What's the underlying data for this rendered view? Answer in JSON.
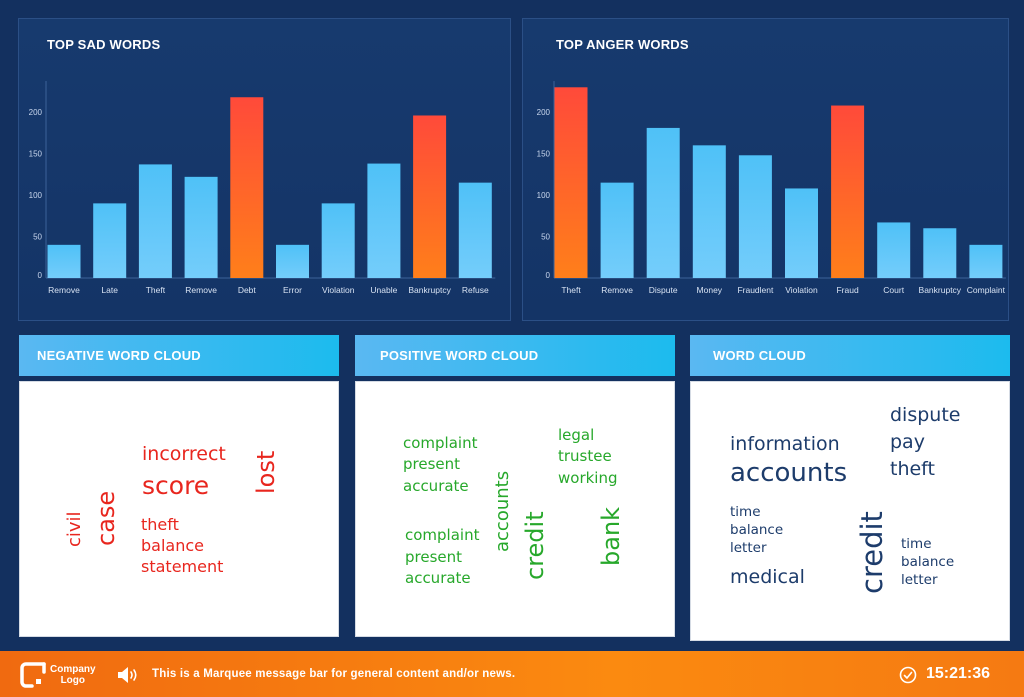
{
  "charts": {
    "sad": {
      "title": "TOP SAD WORDS"
    },
    "anger": {
      "title": "TOP ANGER WORDS"
    }
  },
  "chart_data": [
    {
      "type": "bar",
      "title": "TOP SAD WORDS",
      "categories": [
        "Remove",
        "Late",
        "Theft",
        "Remove",
        "Debt",
        "Error",
        "Violation",
        "Unable",
        "Bankruptcy",
        "Refuse"
      ],
      "values": [
        40,
        90,
        137,
        122,
        218,
        40,
        90,
        138,
        196,
        115
      ],
      "highlight": [
        false,
        false,
        false,
        false,
        true,
        false,
        false,
        false,
        true,
        false
      ],
      "yticks": [
        0,
        50,
        100,
        150,
        200
      ],
      "ylim": [
        0,
        240
      ],
      "grid": false,
      "colors": {
        "normal": "#5ac8fa",
        "highlight": "#ff5a1f"
      }
    },
    {
      "type": "bar",
      "title": "TOP ANGER WORDS",
      "categories": [
        "Theft",
        "Remove",
        "Dispute",
        "Money",
        "Fraudlent",
        "Violation",
        "Fraud",
        "Court",
        "Bankruptcy",
        "Complaint"
      ],
      "values": [
        230,
        115,
        181,
        160,
        148,
        108,
        208,
        67,
        60,
        40
      ],
      "highlight": [
        true,
        false,
        false,
        false,
        false,
        false,
        true,
        false,
        false,
        false
      ],
      "yticks": [
        0,
        50,
        100,
        150,
        200
      ],
      "ylim": [
        0,
        240
      ],
      "grid": false,
      "colors": {
        "normal": "#5ac8fa",
        "highlight": "#ff5a1f"
      }
    }
  ],
  "clouds": {
    "negative": {
      "title": "NEGATIVE WORD CLOUD",
      "words": [
        "incorrect",
        "score",
        "lost",
        "civil",
        "case",
        "theft",
        "balance",
        "statement"
      ]
    },
    "positive": {
      "title": "POSITIVE WORD CLOUD",
      "words": [
        "complaint",
        "present",
        "accurate",
        "legal",
        "trustee",
        "working",
        "accounts",
        "credit",
        "bank",
        "complaint",
        "present",
        "accurate"
      ]
    },
    "neutral": {
      "title": "WORD CLOUD",
      "words": [
        "information",
        "accounts",
        "dispute",
        "pay",
        "theft",
        "time",
        "balance",
        "letter",
        "medical",
        "credit",
        "time",
        "balance",
        "letter"
      ]
    }
  },
  "footer": {
    "logo_line1": "Company",
    "logo_line2": "Logo",
    "marquee": "This is a Marquee message bar for general content and/or news.",
    "time": "15:21:36"
  },
  "icons": [
    "logo-icon",
    "speaker-icon",
    "clock-icon"
  ]
}
